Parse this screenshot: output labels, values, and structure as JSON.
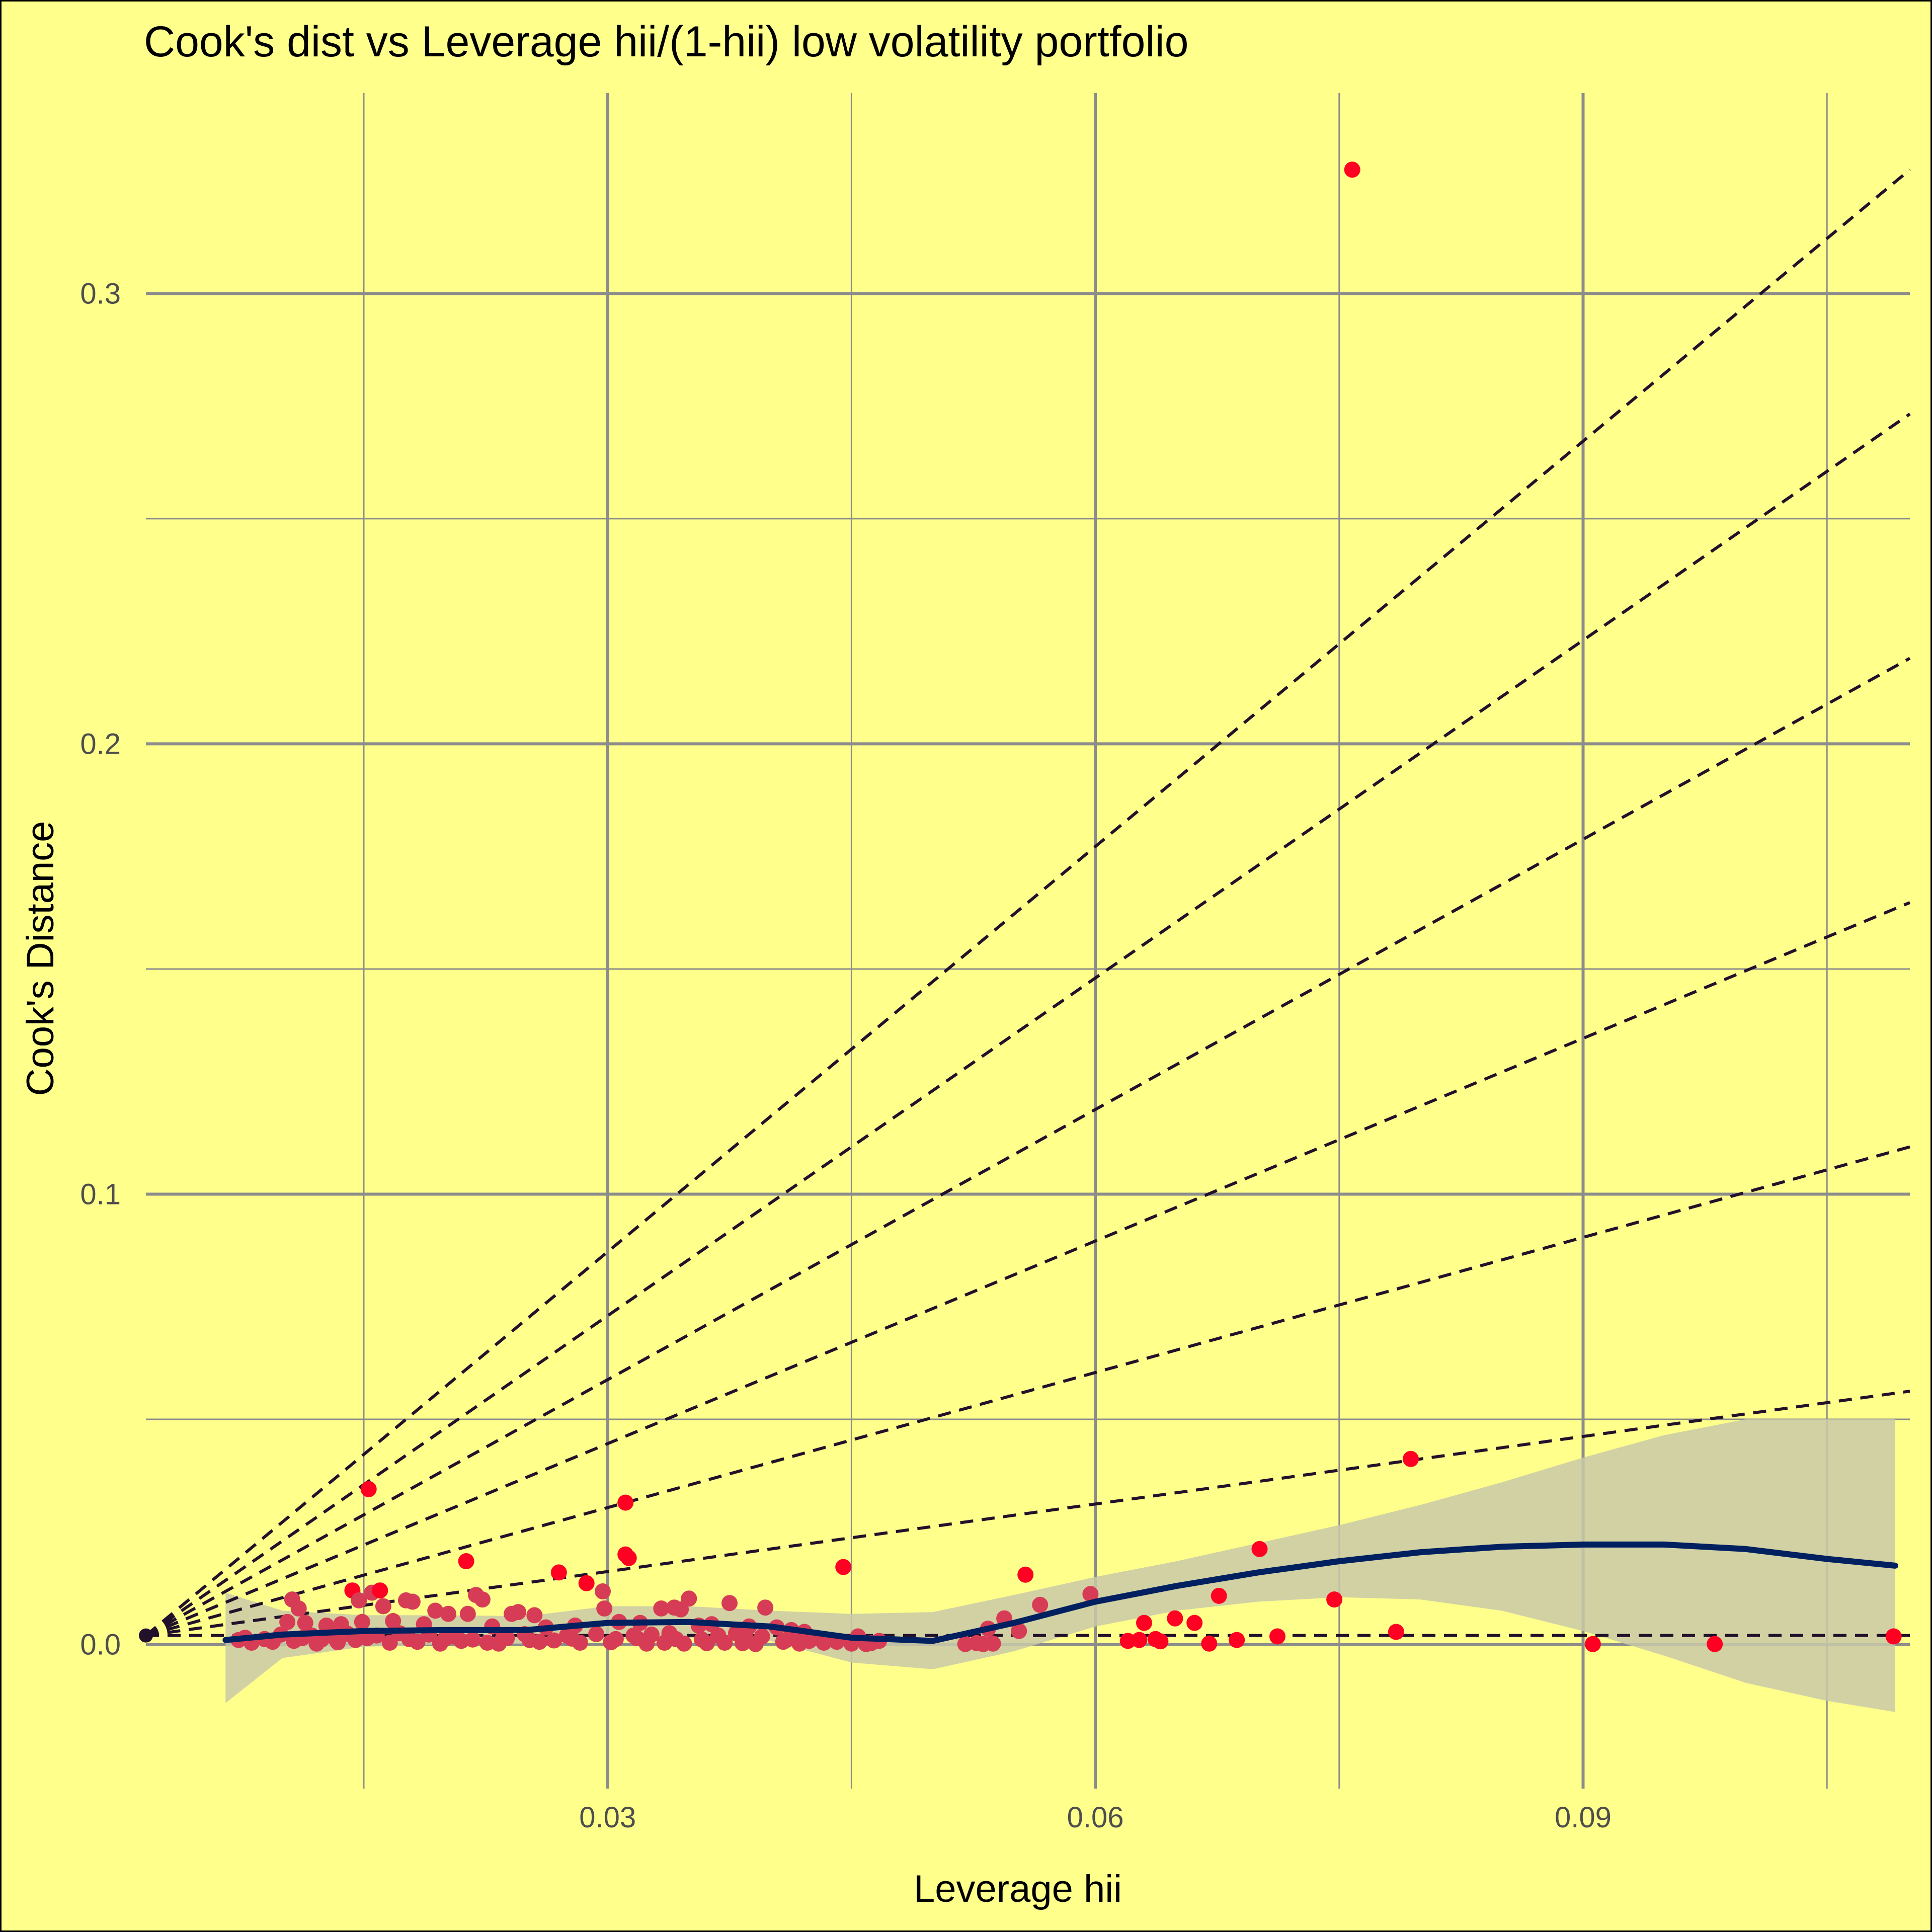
{
  "chart_data": {
    "type": "scatter",
    "title": "Cook's dist vs Leverage hii/(1-hii) low volatility portfolio",
    "xlabel": "Leverage hii",
    "ylabel": "Cook's Distance",
    "xlim": [
      0.0016,
      0.1101
    ],
    "ylim": [
      -0.032,
      0.3445
    ],
    "x_ticks": [
      0.03,
      0.06,
      0.09
    ],
    "x_tick_labels": [
      "0.03",
      "0.06",
      "0.09"
    ],
    "x_minor_ticks": [
      0.015,
      0.045,
      0.075,
      0.105
    ],
    "y_ticks": [
      0.0,
      0.1,
      0.2,
      0.3
    ],
    "y_tick_labels": [
      "0.0",
      "0.1",
      "0.2",
      "0.3"
    ],
    "y_minor_ticks": [
      0.05,
      0.15,
      0.25
    ],
    "grid": true,
    "legend": "none",
    "colors": {
      "background": "#FFFF8C",
      "grid": "#8C8C8C",
      "point_high": "#FF0022",
      "point_low": "#D63C55",
      "smooth_line": "#002060",
      "confidence_band": "#C9C9A8",
      "reference_lines": "#22112A"
    },
    "reference_lines": {
      "style": "dashed",
      "origin": [
        0.0016,
        0.002
      ],
      "slopes": [
        0,
        0.5,
        1,
        1.5,
        2,
        2.5,
        3
      ]
    },
    "series": [
      {
        "type": "scatter",
        "points": [
          [
            0.0758,
            0.3275
          ],
          [
            0.0794,
            0.0412
          ],
          [
            0.0701,
            0.0212
          ],
          [
            0.0445,
            0.0172
          ],
          [
            0.0557,
            0.0155
          ],
          [
            0.0597,
            0.0112
          ],
          [
            0.0676,
            0.0108
          ],
          [
            0.0747,
            0.01
          ],
          [
            0.0566,
            0.0088
          ],
          [
            0.0544,
            0.0058
          ],
          [
            0.0534,
            0.0035
          ],
          [
            0.0553,
            0.003
          ],
          [
            0.063,
            0.0048
          ],
          [
            0.0649,
            0.0058
          ],
          [
            0.0661,
            0.0048
          ],
          [
            0.062,
            0.0008
          ],
          [
            0.0627,
            0.001
          ],
          [
            0.0637,
            0.0012
          ],
          [
            0.064,
            0.0007
          ],
          [
            0.067,
            0.0002
          ],
          [
            0.0687,
            0.001
          ],
          [
            0.0712,
            0.0018
          ],
          [
            0.0785,
            0.0028
          ],
          [
            0.0906,
            0.0001
          ],
          [
            0.0981,
            0.0001
          ],
          [
            0.1091,
            0.0018
          ],
          [
            0.0153,
            0.0345
          ],
          [
            0.0311,
            0.0315
          ],
          [
            0.0311,
            0.02
          ],
          [
            0.0313,
            0.0192
          ],
          [
            0.0213,
            0.0185
          ],
          [
            0.027,
            0.016
          ],
          [
            0.0287,
            0.0136
          ],
          [
            0.0297,
            0.0118
          ],
          [
            0.0155,
            0.0115
          ],
          [
            0.016,
            0.012
          ],
          [
            0.0143,
            0.012
          ],
          [
            0.0147,
            0.0098
          ],
          [
            0.0106,
            0.01
          ],
          [
            0.0176,
            0.0098
          ],
          [
            0.018,
            0.0095
          ],
          [
            0.0219,
            0.011
          ],
          [
            0.0223,
            0.01
          ],
          [
            0.035,
            0.0102
          ],
          [
            0.0375,
            0.0092
          ],
          [
            0.0397,
            0.0082
          ],
          [
            0.0298,
            0.008
          ],
          [
            0.0333,
            0.008
          ],
          [
            0.0341,
            0.0082
          ],
          [
            0.0345,
            0.0078
          ],
          [
            0.011,
            0.008
          ],
          [
            0.0162,
            0.0085
          ],
          [
            0.0194,
            0.0075
          ],
          [
            0.0202,
            0.0068
          ],
          [
            0.0214,
            0.0068
          ],
          [
            0.0241,
            0.0068
          ],
          [
            0.0245,
            0.0072
          ],
          [
            0.0255,
            0.0065
          ],
          [
            0.0103,
            0.005
          ],
          [
            0.0114,
            0.0048
          ],
          [
            0.0127,
            0.0042
          ],
          [
            0.0136,
            0.0045
          ],
          [
            0.0149,
            0.005
          ],
          [
            0.0168,
            0.0052
          ],
          [
            0.0187,
            0.0045
          ],
          [
            0.0229,
            0.004
          ],
          [
            0.0262,
            0.0038
          ],
          [
            0.028,
            0.0042
          ],
          [
            0.0307,
            0.005
          ],
          [
            0.032,
            0.0048
          ],
          [
            0.0356,
            0.0042
          ],
          [
            0.0364,
            0.0045
          ],
          [
            0.0387,
            0.004
          ],
          [
            0.0404,
            0.0038
          ],
          [
            0.0413,
            0.0032
          ],
          [
            0.0421,
            0.0028
          ],
          [
            0.0099,
            0.0022
          ],
          [
            0.0118,
            0.002
          ],
          [
            0.0131,
            0.0018
          ],
          [
            0.014,
            0.0024
          ],
          [
            0.0158,
            0.002
          ],
          [
            0.0172,
            0.0025
          ],
          [
            0.019,
            0.0022
          ],
          [
            0.0205,
            0.0018
          ],
          [
            0.0236,
            0.002
          ],
          [
            0.0249,
            0.0023
          ],
          [
            0.0275,
            0.002
          ],
          [
            0.0293,
            0.0023
          ],
          [
            0.0316,
            0.002
          ],
          [
            0.0327,
            0.0022
          ],
          [
            0.0338,
            0.0025
          ],
          [
            0.0368,
            0.002
          ],
          [
            0.0379,
            0.0025
          ],
          [
            0.0395,
            0.0018
          ],
          [
            0.0428,
            0.0015
          ],
          [
            0.0454,
            0.0018
          ],
          [
            0.0467,
            0.0008
          ],
          [
            0.0073,
            0.001
          ],
          [
            0.0081,
            0.0004
          ],
          [
            0.0094,
            0.0006
          ],
          [
            0.0107,
            0.0008
          ],
          [
            0.0121,
            0.0002
          ],
          [
            0.0134,
            0.0005
          ],
          [
            0.0145,
            0.001
          ],
          [
            0.0166,
            0.0004
          ],
          [
            0.0183,
            0.0006
          ],
          [
            0.0197,
            0.0002
          ],
          [
            0.021,
            0.0008
          ],
          [
            0.0226,
            0.0004
          ],
          [
            0.0233,
            0.0002
          ],
          [
            0.0258,
            0.0006
          ],
          [
            0.0267,
            0.0009
          ],
          [
            0.0283,
            0.0004
          ],
          [
            0.0302,
            0.0005
          ],
          [
            0.0324,
            0.0002
          ],
          [
            0.0335,
            0.0004
          ],
          [
            0.0347,
            0.0002
          ],
          [
            0.0361,
            0.0003
          ],
          [
            0.0372,
            0.0004
          ],
          [
            0.0383,
            0.0003
          ],
          [
            0.0391,
            0.0001
          ],
          [
            0.0408,
            0.0006
          ],
          [
            0.0418,
            0.0002
          ],
          [
            0.0433,
            0.0004
          ],
          [
            0.0459,
            0.0001
          ],
          [
            0.0462,
            0.0003
          ],
          [
            0.052,
            0.0001
          ],
          [
            0.0527,
            0.0003
          ],
          [
            0.0531,
            0.0001
          ],
          [
            0.0537,
            0.0002
          ],
          [
            0.0077,
            0.0015
          ],
          [
            0.0089,
            0.0012
          ],
          [
            0.0112,
            0.0014
          ],
          [
            0.0124,
            0.0011
          ],
          [
            0.0152,
            0.0014
          ],
          [
            0.0178,
            0.0012
          ],
          [
            0.02,
            0.0013
          ],
          [
            0.0217,
            0.0011
          ],
          [
            0.0238,
            0.0014
          ],
          [
            0.0252,
            0.001
          ],
          [
            0.0278,
            0.0013
          ],
          [
            0.0305,
            0.0012
          ],
          [
            0.0318,
            0.0014
          ],
          [
            0.0342,
            0.0012
          ],
          [
            0.0358,
            0.0011
          ],
          [
            0.0385,
            0.0013
          ],
          [
            0.041,
            0.001
          ],
          [
            0.0424,
            0.0008
          ],
          [
            0.0441,
            0.0006
          ],
          [
            0.045,
            0.0002
          ]
        ]
      },
      {
        "type": "smooth",
        "x": [
          0.0065,
          0.01,
          0.015,
          0.02,
          0.025,
          0.03,
          0.035,
          0.04,
          0.045,
          0.05,
          0.055,
          0.06,
          0.065,
          0.07,
          0.075,
          0.08,
          0.085,
          0.09,
          0.095,
          0.1,
          0.105,
          0.1092
        ],
        "y": [
          0.001,
          0.0022,
          0.003,
          0.0032,
          0.0032,
          0.0048,
          0.005,
          0.004,
          0.0015,
          0.0008,
          0.0048,
          0.0095,
          0.013,
          0.016,
          0.0185,
          0.0205,
          0.0217,
          0.0222,
          0.0222,
          0.0212,
          0.019,
          0.0175
        ],
        "lower": [
          -0.013,
          -0.003,
          -0.0005,
          0.0,
          0.0002,
          0.0012,
          0.0015,
          0.0008,
          -0.004,
          -0.0055,
          -0.0015,
          0.004,
          0.0075,
          0.0095,
          0.0105,
          0.01,
          0.0075,
          0.003,
          -0.0025,
          -0.0085,
          -0.0125,
          -0.015
        ],
        "upper": [
          0.0115,
          0.0075,
          0.0065,
          0.0065,
          0.0063,
          0.0085,
          0.0085,
          0.0075,
          0.0068,
          0.0072,
          0.011,
          0.015,
          0.0185,
          0.0225,
          0.0265,
          0.031,
          0.036,
          0.0415,
          0.0465,
          0.05,
          0.05,
          0.05
        ]
      }
    ]
  }
}
